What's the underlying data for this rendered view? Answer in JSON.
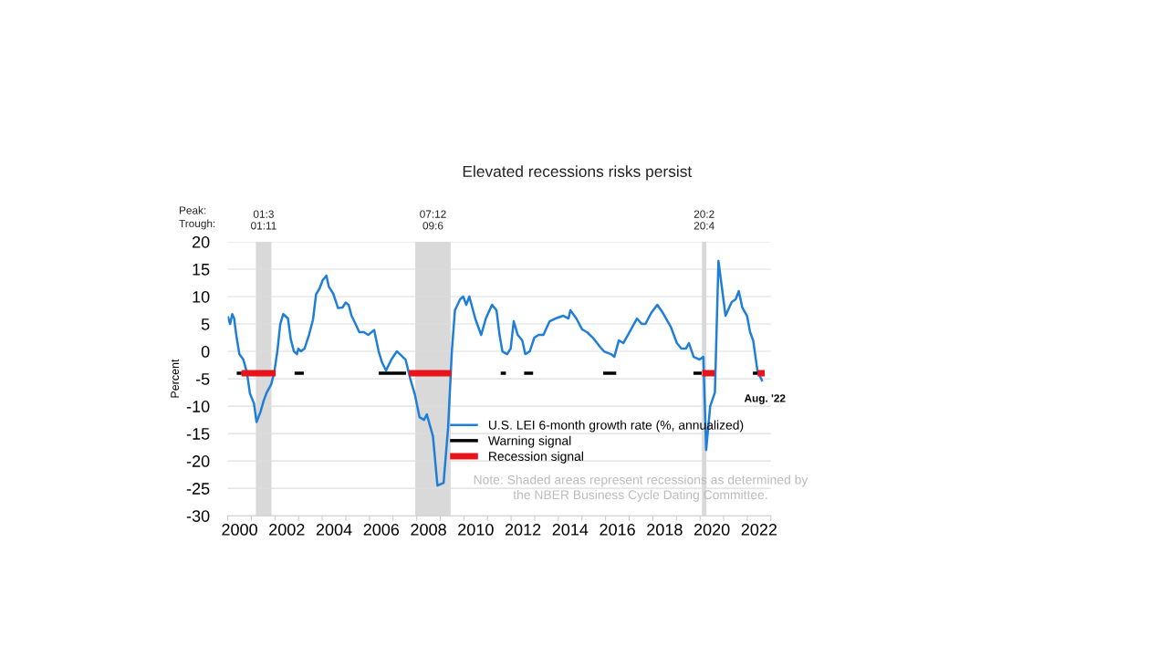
{
  "chart_data": {
    "type": "line",
    "title": "Elevated recessions risks persist",
    "ylabel": "Percent",
    "xlim": [
      2000,
      2023
    ],
    "ylim": [
      -30,
      20
    ],
    "yticks": [
      -30,
      -25,
      -20,
      -15,
      -10,
      -5,
      0,
      5,
      10,
      15,
      20
    ],
    "xticks": [
      {
        "value": 2000.5,
        "label": "2000"
      },
      {
        "value": 2002.5,
        "label": "2002"
      },
      {
        "value": 2004.5,
        "label": "2004"
      },
      {
        "value": 2006.5,
        "label": "2006"
      },
      {
        "value": 2008.5,
        "label": "2008"
      },
      {
        "value": 2010.5,
        "label": "2010"
      },
      {
        "value": 2012.5,
        "label": "2012"
      },
      {
        "value": 2014.5,
        "label": "2014"
      },
      {
        "value": 2016.5,
        "label": "2016"
      },
      {
        "value": 2018.5,
        "label": "2018"
      },
      {
        "value": 2020.5,
        "label": "2020"
      },
      {
        "value": 2022.5,
        "label": "2022"
      },
      {
        "value": 2000,
        "label": null
      },
      {
        "value": 2001,
        "label": null
      },
      {
        "value": 2002,
        "label": null
      },
      {
        "value": 2003,
        "label": null
      },
      {
        "value": 2004,
        "label": null
      },
      {
        "value": 2005,
        "label": null
      },
      {
        "value": 2006,
        "label": null
      },
      {
        "value": 2007,
        "label": null
      },
      {
        "value": 2008,
        "label": null
      },
      {
        "value": 2009,
        "label": null
      },
      {
        "value": 2010,
        "label": null
      },
      {
        "value": 2011,
        "label": null
      },
      {
        "value": 2012,
        "label": null
      },
      {
        "value": 2013,
        "label": null
      },
      {
        "value": 2014,
        "label": null
      },
      {
        "value": 2015,
        "label": null
      },
      {
        "value": 2016,
        "label": null
      },
      {
        "value": 2017,
        "label": null
      },
      {
        "value": 2018,
        "label": null
      },
      {
        "value": 2019,
        "label": null
      },
      {
        "value": 2020,
        "label": null
      },
      {
        "value": 2021,
        "label": null
      },
      {
        "value": 2022,
        "label": null
      },
      {
        "value": 2023,
        "label": null
      }
    ],
    "grid": "y",
    "legend": "bottom right",
    "line_style": "solid",
    "marker": "none",
    "series": [
      {
        "name": "U.S. LEI 6-month growth rate (%, annualized)",
        "color": "#1f7fd8",
        "x": [
          2000.0,
          2000.1,
          2000.19,
          2000.27,
          2000.36,
          2000.49,
          2000.66,
          2000.81,
          2000.94,
          2001.11,
          2001.22,
          2001.39,
          2001.52,
          2001.65,
          2001.84,
          2001.97,
          2002.1,
          2002.22,
          2002.35,
          2002.55,
          2002.67,
          2002.8,
          2002.93,
          2002.99,
          2003.1,
          2003.25,
          2003.44,
          2003.61,
          2003.74,
          2003.89,
          2004.02,
          2004.18,
          2004.28,
          2004.47,
          2004.67,
          2004.86,
          2004.99,
          2005.12,
          2005.24,
          2005.41,
          2005.57,
          2005.76,
          2005.95,
          2006.2,
          2006.39,
          2006.53,
          2006.7,
          2006.93,
          2007.16,
          2007.29,
          2007.53,
          2007.73,
          2007.93,
          2008.12,
          2008.31,
          2008.43,
          2008.56,
          2008.69,
          2008.88,
          2009.14,
          2009.33,
          2009.49,
          2009.62,
          2009.84,
          2009.97,
          2010.1,
          2010.23,
          2010.48,
          2010.73,
          2010.93,
          2011.19,
          2011.38,
          2011.51,
          2011.63,
          2011.83,
          2011.98,
          2012.11,
          2012.28,
          2012.47,
          2012.6,
          2012.79,
          2012.98,
          2013.17,
          2013.37,
          2013.63,
          2013.88,
          2014.21,
          2014.43,
          2014.51,
          2014.76,
          2015.01,
          2015.21,
          2015.46,
          2015.73,
          2015.93,
          2016.23,
          2016.37,
          2016.56,
          2016.75,
          2017.01,
          2017.33,
          2017.53,
          2017.69,
          2017.93,
          2018.19,
          2018.43,
          2018.76,
          2019.02,
          2019.21,
          2019.4,
          2019.53,
          2019.73,
          2019.98,
          2020.14,
          2020.26,
          2020.43,
          2020.63,
          2020.78,
          2021.08,
          2021.34,
          2021.51,
          2021.64,
          2021.79,
          2021.99,
          2022.12,
          2022.25,
          2022.43,
          2022.64
        ],
        "values": [
          6.4,
          5,
          6.8,
          6,
          3,
          -0.5,
          -1.5,
          -3.8,
          -7.7,
          -9.5,
          -12.9,
          -11,
          -9,
          -7.5,
          -6,
          -3.8,
          0,
          4.9,
          6.8,
          6,
          2.2,
          0,
          -0.5,
          0.5,
          0,
          0.5,
          3,
          5.8,
          10.4,
          11.5,
          13,
          13.8,
          11.8,
          10.5,
          7.9,
          8,
          8.9,
          8.5,
          6.5,
          5,
          3.5,
          3.5,
          3,
          3.9,
          0,
          -2,
          -3.5,
          -1.5,
          0,
          -0.5,
          -1.5,
          -5,
          -8,
          -12,
          -12.5,
          -11.5,
          -13.5,
          -15.5,
          -24.5,
          -24,
          -14,
          0,
          7.5,
          9.5,
          10,
          8.5,
          10,
          6,
          3,
          6,
          8.5,
          7.5,
          3,
          0,
          -0.5,
          0.5,
          5.5,
          3,
          2,
          -0.5,
          0,
          2.5,
          3,
          3,
          5.5,
          6,
          6.5,
          6,
          7.5,
          6,
          4,
          3.5,
          2.5,
          1,
          0,
          -0.5,
          -1,
          2,
          1.5,
          3.5,
          6,
          5,
          5,
          7,
          8.5,
          7,
          4.5,
          1.5,
          0.5,
          0.5,
          1.5,
          -1,
          -1.5,
          -1,
          -18,
          -10,
          -7.5,
          16.5,
          6.5,
          9,
          9.5,
          11,
          8,
          6.5,
          3.5,
          2,
          -3.5,
          -5.5
        ]
      },
      {
        "name": "Warning signal",
        "color": "#000000",
        "x": [
          2000.38,
          2000.58,
          2000.6,
          2002.83,
          2003.22,
          2003.3,
          2006.39,
          2007.55,
          2007.6,
          2011.56,
          2011.78,
          2011.8,
          2012.55,
          2012.93,
          2013.0,
          2015.9,
          2016.45,
          2016.5,
          2019.72,
          2020.07,
          2020.1,
          2022.24,
          2022.44
        ],
        "values": [
          -4,
          -4,
          null,
          -4,
          -4,
          null,
          -4,
          -4,
          null,
          -4,
          -4,
          null,
          -4,
          -4,
          null,
          -4,
          -4,
          null,
          -4,
          -4,
          null,
          -4,
          -4
        ]
      },
      {
        "name": "Recession signal",
        "color": "#e8141b",
        "x": [
          2000.58,
          2002.03,
          2002.1,
          2007.67,
          2009.47,
          2009.5,
          2020.09,
          2020.62,
          2020.7,
          2022.44,
          2022.74
        ],
        "values": [
          -4,
          -4,
          null,
          -4,
          -4,
          null,
          -4,
          -4,
          null,
          -4,
          -4
        ]
      }
    ],
    "bands": [
      {
        "axis": "x",
        "from": 2001.19,
        "to": 2001.85,
        "label": "01:3\n01:11",
        "color": "#d9d9d9"
      },
      {
        "axis": "x",
        "from": 2007.94,
        "to": 2009.44,
        "label": "07:12\n09:6",
        "color": "#d9d9d9"
      },
      {
        "axis": "x",
        "from": 2020.08,
        "to": 2020.27,
        "label": "20:2\n20:4",
        "color": "#d9d9d9"
      }
    ],
    "annotations": [
      "Peak:\nTrough:",
      "Note: Shaded areas represent recessions as determined by\nthe NBER Business Cycle Dating Committee.",
      {
        "text": "Aug. '22",
        "x": 2022.64,
        "y": -5.5
      }
    ]
  }
}
